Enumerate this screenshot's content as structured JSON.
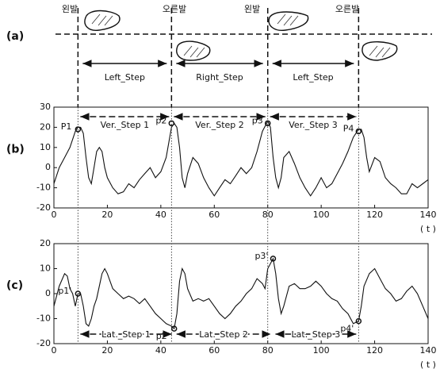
{
  "panel_a": {
    "label": "(a)",
    "foot_labels": [
      "왼발",
      "오른발",
      "왼발",
      "오른발"
    ],
    "steps": [
      "Left_Step",
      "Right_Step",
      "Left_Step"
    ]
  },
  "chart_data": [
    {
      "type": "line",
      "panel_label": "(b)",
      "x_unit": "( t )",
      "x": [
        0,
        2,
        4,
        6,
        8,
        9,
        10,
        11,
        12,
        13,
        14,
        15,
        16,
        17,
        18,
        19,
        20,
        22,
        24,
        26,
        28,
        30,
        32,
        34,
        36,
        38,
        40,
        42,
        44,
        45,
        46,
        47,
        48,
        49,
        50,
        52,
        54,
        56,
        58,
        60,
        62,
        64,
        66,
        68,
        70,
        72,
        74,
        76,
        78,
        80,
        81,
        82,
        83,
        84,
        85,
        86,
        88,
        90,
        92,
        94,
        96,
        98,
        100,
        102,
        104,
        106,
        108,
        110,
        112,
        114,
        115,
        116,
        117,
        118,
        120,
        122,
        124,
        126,
        128,
        130,
        132,
        134,
        136,
        138,
        140
      ],
      "series": [
        {
          "color": "#111111",
          "values": [
            -8,
            0,
            5,
            10,
            18,
            20,
            20,
            17,
            5,
            -5,
            -8,
            0,
            8,
            10,
            8,
            0,
            -5,
            -10,
            -13,
            -12,
            -8,
            -10,
            -6,
            -3,
            0,
            -5,
            -2,
            5,
            20,
            22,
            20,
            10,
            -5,
            -10,
            -3,
            5,
            2,
            -5,
            -10,
            -14,
            -10,
            -6,
            -8,
            -4,
            0,
            -3,
            0,
            8,
            18,
            23,
            20,
            5,
            -5,
            -10,
            -5,
            5,
            8,
            2,
            -5,
            -10,
            -14,
            -10,
            -5,
            -10,
            -8,
            -3,
            2,
            8,
            15,
            19,
            19,
            15,
            5,
            -2,
            5,
            3,
            -5,
            -8,
            -10,
            -13,
            -13,
            -8,
            -10,
            -8,
            -6
          ]
        }
      ],
      "points": [
        {
          "label": "P1",
          "x": 9,
          "y": 19
        },
        {
          "label": "p2",
          "x": 44,
          "y": 22
        },
        {
          "label": "p3",
          "x": 80,
          "y": 22
        },
        {
          "label": "P4",
          "x": 114,
          "y": 18
        }
      ],
      "spans": [
        {
          "label": "Ver._Step 1",
          "from": 9,
          "to": 44
        },
        {
          "label": "Ver._Step 2",
          "from": 44,
          "to": 80
        },
        {
          "label": "Ver._Step 3",
          "from": 80,
          "to": 114
        }
      ],
      "xlim": [
        0,
        140
      ],
      "ylim": [
        -20,
        30
      ],
      "xticks": [
        0,
        20,
        40,
        60,
        80,
        100,
        120,
        140
      ],
      "yticks": [
        -20,
        -10,
        0,
        10,
        20,
        30
      ]
    },
    {
      "type": "line",
      "panel_label": "(c)",
      "x_unit": "( t )",
      "x": [
        0,
        2,
        4,
        5,
        6,
        7,
        8,
        9,
        10,
        11,
        12,
        13,
        14,
        15,
        16,
        18,
        19,
        20,
        22,
        24,
        26,
        28,
        30,
        32,
        34,
        36,
        38,
        40,
        42,
        44,
        45,
        46,
        47,
        48,
        49,
        50,
        52,
        54,
        56,
        58,
        60,
        62,
        64,
        66,
        68,
        70,
        72,
        74,
        76,
        78,
        79,
        80,
        82,
        83,
        84,
        85,
        86,
        88,
        90,
        92,
        94,
        96,
        98,
        100,
        102,
        104,
        106,
        108,
        110,
        112,
        114,
        115,
        116,
        118,
        120,
        122,
        124,
        126,
        128,
        130,
        132,
        134,
        136,
        138,
        140
      ],
      "series": [
        {
          "color": "#111111",
          "values": [
            -5,
            3,
            8,
            7,
            2,
            0,
            -5,
            0,
            0,
            -5,
            -12,
            -13,
            -10,
            -5,
            -2,
            8,
            10,
            8,
            2,
            0,
            -2,
            -1,
            -2,
            -4,
            -2,
            -5,
            -8,
            -10,
            -12,
            -13,
            -14,
            -8,
            5,
            10,
            8,
            2,
            -3,
            -2,
            -3,
            -2,
            -5,
            -8,
            -10,
            -8,
            -5,
            -3,
            0,
            2,
            6,
            4,
            2,
            10,
            14,
            8,
            -2,
            -8,
            -5,
            3,
            4,
            2,
            2,
            3,
            5,
            3,
            0,
            -2,
            -3,
            -6,
            -8,
            -12,
            -11,
            -5,
            3,
            8,
            10,
            6,
            2,
            0,
            -3,
            -2,
            1,
            3,
            0,
            -5,
            -10
          ]
        }
      ],
      "points": [
        {
          "label": "p1'",
          "x": 9,
          "y": 0
        },
        {
          "label": "p2'",
          "x": 45,
          "y": -14
        },
        {
          "label": "p3'",
          "x": 82,
          "y": 14
        },
        {
          "label": "p4'",
          "x": 114,
          "y": -11
        }
      ],
      "spans": [
        {
          "label": "Lat._Step 1",
          "from": 9,
          "to": 45
        },
        {
          "label": "Lat._Step 2",
          "from": 45,
          "to": 82
        },
        {
          "label": "Lat._Step 3",
          "from": 82,
          "to": 114
        }
      ],
      "xlim": [
        0,
        140
      ],
      "ylim": [
        -20,
        20
      ],
      "xticks": [
        0,
        20,
        40,
        60,
        80,
        100,
        120,
        140
      ],
      "yticks": [
        -20,
        -10,
        0,
        10,
        20
      ]
    }
  ]
}
